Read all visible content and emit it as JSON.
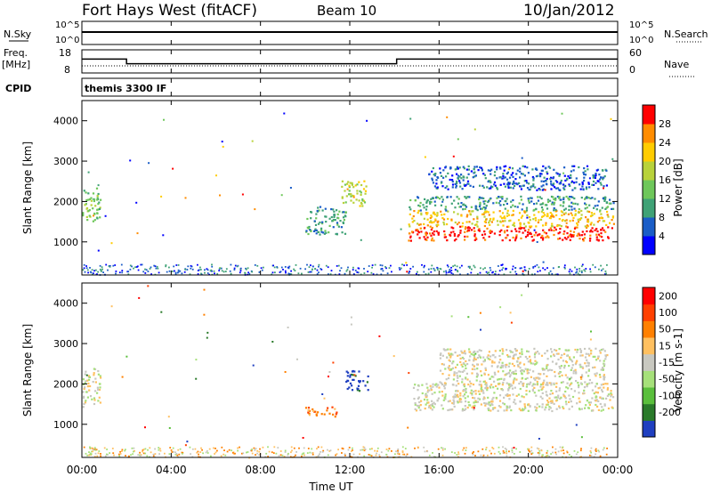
{
  "header": {
    "station": "Fort Hays West (fitACF)",
    "beam": "Beam 10",
    "date": "10/Jan/2012"
  },
  "strip_labels": {
    "nsky": "N.Sky",
    "nsky_ticks": [
      "10^5",
      "10^0"
    ],
    "nsearch": "N.Search",
    "freq_line1": "Freq.",
    "freq_line2": "[MHz]",
    "freq_ticks": [
      "18",
      "8"
    ],
    "nave": "Nave",
    "nave_ticks": [
      "60",
      "0"
    ],
    "cpid": "CPID",
    "program": "themis 3300 IF"
  },
  "chart_data": {
    "type": "heatmap",
    "x_axis": {
      "label": "Time UT",
      "ticks": [
        "00:00",
        "04:00",
        "08:00",
        "12:00",
        "16:00",
        "20:00",
        "00:00"
      ],
      "range_hours": [
        0,
        24
      ]
    },
    "y_axis": {
      "label": "Slant Range [km]",
      "ticks": [
        1000,
        2000,
        3000,
        4000
      ],
      "range": [
        180,
        4500
      ]
    },
    "freq_series_mhz": [
      {
        "from_hour": 0,
        "to_hour": 2,
        "value": 14
      },
      {
        "from_hour": 2,
        "to_hour": 14.1,
        "value": 12
      },
      {
        "from_hour": 14.1,
        "to_hour": 24,
        "value": 14
      }
    ],
    "panels": [
      {
        "name": "power",
        "colorbar_label": "Power [dB]",
        "colorbar_ticks": [
          "4",
          "8",
          "12",
          "16",
          "20",
          "24",
          "28"
        ],
        "colors": [
          "#0000ff",
          "#1a5dc7",
          "#3fa276",
          "#6ec75a",
          "#b8d23a",
          "#ffcc00",
          "#ff8c00",
          "#ff0000"
        ],
        "features": [
          {
            "t": [
              0.0,
              0.8
            ],
            "r": [
              1450,
              2350
            ],
            "band": 3
          },
          {
            "t": [
              10.0,
              11.8
            ],
            "r": [
              1200,
              1900
            ],
            "band": 2
          },
          {
            "t": [
              11.6,
              12.7
            ],
            "r": [
              1900,
              2550
            ],
            "band": 4
          },
          {
            "t": [
              14.6,
              23.8
            ],
            "r": [
              1050,
              1400
            ],
            "band": 7
          },
          {
            "t": [
              14.6,
              23.8
            ],
            "r": [
              1400,
              1800
            ],
            "band": 5
          },
          {
            "t": [
              14.6,
              23.8
            ],
            "r": [
              1800,
              2150
            ],
            "band": 2
          },
          {
            "t": [
              15.5,
              23.5
            ],
            "r": [
              2300,
              2900
            ],
            "band": 1
          }
        ]
      },
      {
        "name": "velocity",
        "colorbar_label": "Velocity [m s-1]",
        "colorbar_ticks": [
          "200",
          "100",
          "50",
          "15",
          "-15",
          "-50",
          "-100",
          "-200"
        ],
        "colors": [
          "#1f3fc0",
          "#2a7a2a",
          "#5abf3c",
          "#a6e07a",
          "#c8c8c0",
          "#ffc060",
          "#ff8000",
          "#ff4000",
          "#ff0000"
        ],
        "features": [
          {
            "t": [
              0.0,
              0.8
            ],
            "r": [
              1450,
              2400
            ],
            "band": 4
          },
          {
            "t": [
              10.0,
              11.4
            ],
            "r": [
              1200,
              1450
            ],
            "band": 6
          },
          {
            "t": [
              11.8,
              12.8
            ],
            "r": [
              1850,
              2350
            ],
            "band": 0
          },
          {
            "t": [
              14.8,
              23.8
            ],
            "r": [
              1350,
              2050
            ],
            "band": 4
          },
          {
            "t": [
              16.0,
              23.5
            ],
            "r": [
              2000,
              2900
            ],
            "band": 4
          }
        ]
      }
    ]
  }
}
